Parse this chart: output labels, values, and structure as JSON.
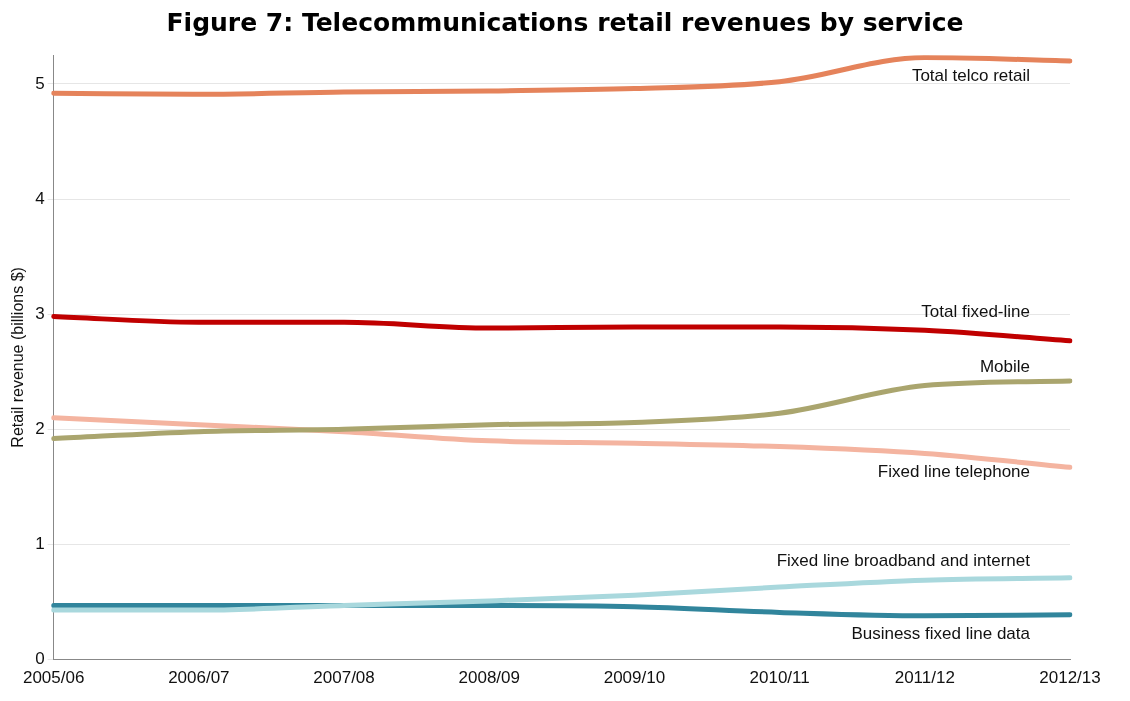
{
  "chart_data": {
    "type": "line",
    "title": "Figure 7: Telecommunications retail revenues by service",
    "ylabel": "Retail revenue (billions $)",
    "categories": [
      "2005/06",
      "2006/07",
      "2007/08",
      "2008/09",
      "2009/10",
      "2010/11",
      "2011/12",
      "2012/13"
    ],
    "series": [
      {
        "name": "Total telco retail",
        "color": "#e5835b",
        "values": [
          4.92,
          4.91,
          4.93,
          4.94,
          4.96,
          5.02,
          5.23,
          5.2
        ]
      },
      {
        "name": "Total fixed-line",
        "color": "#c00000",
        "values": [
          2.98,
          2.93,
          2.93,
          2.88,
          2.89,
          2.89,
          2.86,
          2.77
        ]
      },
      {
        "name": "Mobile",
        "color": "#aaa56e",
        "values": [
          1.92,
          1.98,
          2.0,
          2.04,
          2.06,
          2.14,
          2.38,
          2.42
        ]
      },
      {
        "name": "Fixed line telephone",
        "color": "#f4b4a0",
        "values": [
          2.1,
          2.04,
          1.98,
          1.9,
          1.88,
          1.85,
          1.79,
          1.67
        ]
      },
      {
        "name": "Fixed line broadband and internet",
        "color": "#a9d8dd",
        "values": [
          0.43,
          0.43,
          0.47,
          0.51,
          0.56,
          0.63,
          0.69,
          0.71
        ]
      },
      {
        "name": "Business fixed line data",
        "color": "#31859c",
        "values": [
          0.47,
          0.47,
          0.47,
          0.47,
          0.46,
          0.41,
          0.38,
          0.39
        ]
      }
    ],
    "ylim": [
      0,
      5.25
    ],
    "yticks": [
      0,
      1,
      2,
      3,
      4,
      5
    ],
    "grid": "y",
    "legend": false,
    "marker": "none",
    "line_style": "solid"
  }
}
